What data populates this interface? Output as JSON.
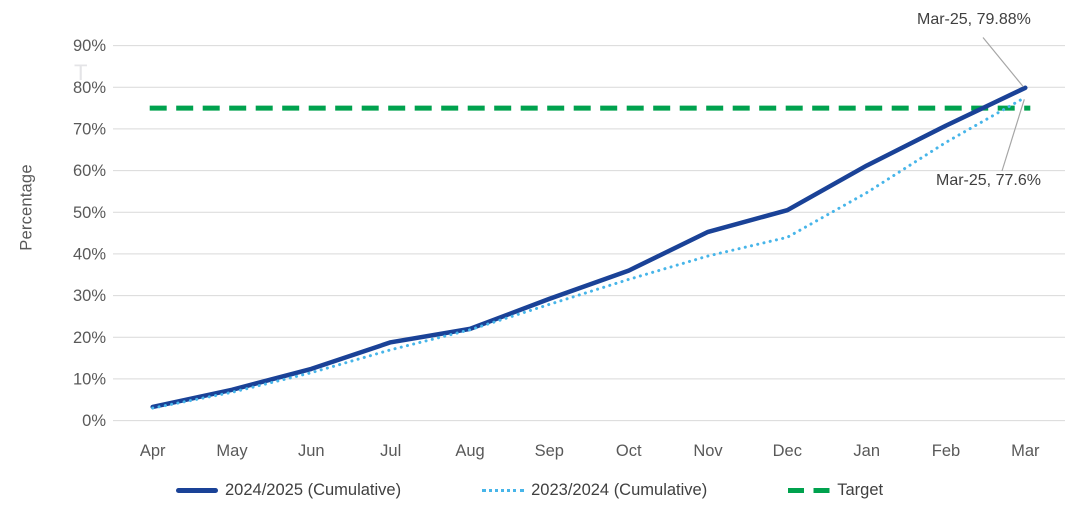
{
  "chart_data": {
    "type": "line",
    "title": "",
    "categories": [
      "Apr",
      "May",
      "Jun",
      "Jul",
      "Aug",
      "Sep",
      "Oct",
      "Nov",
      "Dec",
      "Jan",
      "Feb",
      "Mar"
    ],
    "series": [
      {
        "name": "2024/2025 (Cumulative)",
        "style": "solid",
        "color": "#1a4297",
        "values": [
          3.3,
          7.4,
          12.4,
          18.8,
          22.0,
          29.2,
          36.0,
          45.3,
          50.5,
          61.2,
          70.8,
          79.88
        ]
      },
      {
        "name": "2023/2024 (Cumulative)",
        "style": "dotted",
        "color": "#47b5e9",
        "values": [
          3.0,
          6.8,
          11.5,
          17.0,
          21.8,
          27.9,
          33.9,
          39.5,
          44.0,
          54.7,
          66.8,
          77.6
        ]
      }
    ],
    "target": {
      "name": "Target",
      "style": "dashed",
      "color": "#00a24e",
      "value": 75
    },
    "xlabel": "",
    "ylabel": "Percentage",
    "ylim": [
      0,
      90
    ],
    "ytick_step": 10,
    "ytick_format": "percent",
    "grid": true,
    "legend_position": "bottom",
    "annotations": [
      {
        "text": "Mar-25, 79.88%",
        "series": "2024/2025 (Cumulative)",
        "point": "Mar",
        "value": 79.88
      },
      {
        "text": "Mar-25, 77.6%",
        "series": "2023/2024 (Cumulative)",
        "point": "Mar",
        "value": 77.6
      }
    ]
  },
  "colors": {
    "grid": "#d9d9d9",
    "axis_text": "#595959",
    "annotation_text": "#404040",
    "legend_text": "#404040",
    "leader_line": "#a6a6a6",
    "background": "#ffffff"
  },
  "artifacts": {
    "stray_glyph": "T"
  }
}
